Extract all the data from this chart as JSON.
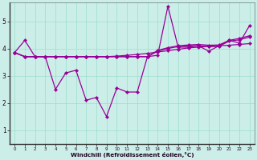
{
  "xlabel": "Windchill (Refroidissement éolien,°C)",
  "background_color": "#cceee8",
  "grid_color": "#99ddcc",
  "line_color": "#990099",
  "xlim": [
    -0.5,
    23.5
  ],
  "ylim": [
    0.5,
    5.7
  ],
  "yticks": [
    1,
    2,
    3,
    4,
    5
  ],
  "xticks": [
    0,
    1,
    2,
    3,
    4,
    5,
    6,
    7,
    8,
    9,
    10,
    11,
    12,
    13,
    14,
    15,
    16,
    17,
    18,
    19,
    20,
    21,
    22,
    23
  ],
  "series": {
    "line1": [
      3.85,
      4.3,
      3.7,
      3.7,
      2.5,
      3.1,
      3.2,
      2.1,
      2.2,
      1.5,
      2.55,
      2.4,
      2.4,
      3.7,
      3.75,
      5.55,
      4.05,
      4.05,
      4.1,
      3.9,
      4.1,
      4.3,
      4.2,
      4.85
    ],
    "line2": [
      3.85,
      3.7,
      3.7,
      3.7,
      3.7,
      3.7,
      3.7,
      3.7,
      3.7,
      3.7,
      3.72,
      3.75,
      3.78,
      3.82,
      3.87,
      3.92,
      3.97,
      4.02,
      4.05,
      4.08,
      4.1,
      4.12,
      4.15,
      4.18
    ],
    "line3": [
      3.85,
      3.7,
      3.7,
      3.7,
      3.7,
      3.7,
      3.7,
      3.7,
      3.7,
      3.7,
      3.7,
      3.7,
      3.7,
      3.7,
      3.9,
      4.0,
      4.07,
      4.1,
      4.1,
      4.07,
      4.08,
      4.27,
      4.32,
      4.42
    ],
    "line4": [
      3.85,
      3.7,
      3.7,
      3.7,
      3.7,
      3.7,
      3.7,
      3.7,
      3.7,
      3.7,
      3.7,
      3.7,
      3.7,
      3.7,
      3.93,
      4.03,
      4.1,
      4.13,
      4.15,
      4.12,
      4.13,
      4.3,
      4.37,
      4.47
    ]
  }
}
